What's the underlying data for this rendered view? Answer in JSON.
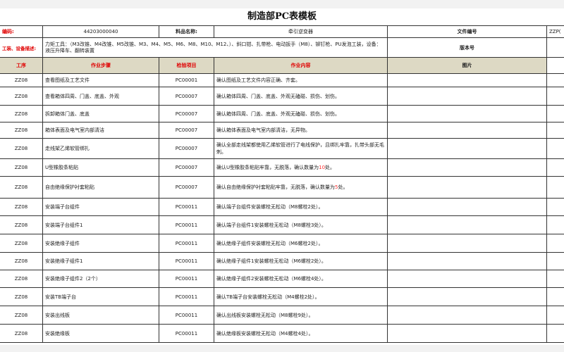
{
  "title": "制造部PC表模板",
  "info": {
    "code_label": "编码:",
    "code_value": "44203000040",
    "material_label": "料品名称:",
    "material_value": "牵引逆变器",
    "doc_no_label": "文件编号",
    "doc_no_value": "ZZP(",
    "tools_label": "工装、设备描述:",
    "tools_value": "力矩工具：（M3改锥、M4改锥、M5改锥、M3、M4、M5、M6、M8、M10、M12、）、斜口钳、扎带枪、电动扳手（M8）、铆钉枪、PU发泡工装，设备：液压升降车、翻转装置",
    "version_label": "版本号"
  },
  "headers": {
    "process": "工序",
    "step": "作业步骤",
    "check": "检验项目",
    "content": "作业内容",
    "image": "图片"
  },
  "rows": [
    {
      "process": "ZZ08",
      "step": "查看图纸及工艺文件",
      "check": "PC00001",
      "content": "确认图纸及工艺文件内容正确、齐套。"
    },
    {
      "process": "ZZ08",
      "step": "查看箱体四周、门盖、底盖、外观",
      "check": "PC00007",
      "content": "确认箱体四周、门盖、底盖、外观无磕碰、损伤、划伤。"
    },
    {
      "process": "ZZ08",
      "step": "拆卸箱体门盖、底盖",
      "check": "PC00007",
      "content": "确认箱体四周、门盖、底盖、外观无磕碰、损伤、划伤。"
    },
    {
      "process": "ZZ08",
      "step": "箱体表面及电气室内部清洁",
      "check": "PC00007",
      "content": "确认箱体表面及电气室内部清洁，无异物。"
    },
    {
      "process": "ZZ08",
      "step": "走线架乙烯软管绑扎",
      "check": "PC00007",
      "content": "确认全部走线架都使用乙烯软管进行了电线保护，且绑扎牢靠，扎带头部无毛刺。"
    },
    {
      "process": "ZZ08",
      "step": "U型橡胶条粘贴",
      "check": "PC00007",
      "content": "确认U型橡胶条粘贴牢靠，无脱落，确认数量为",
      "highlight": "10",
      "suffix": "处。"
    },
    {
      "process": "ZZ08",
      "step": "自由绝缘保护衬套粘贴",
      "check": "PC00007",
      "content": "确认自由绝缘保护衬套粘贴牢靠，无脱落，确认数量为",
      "highlight": "5",
      "suffix": "处。"
    },
    {
      "process": "ZZ08",
      "step": "安装端子台组件",
      "check": "PC00011",
      "content": "确认端子台组件安装螺栓无松动（M8螺栓2处）。"
    },
    {
      "process": "ZZ08",
      "step": "安装端子台组件1",
      "check": "PC00011",
      "content": "确认端子台组件1安装螺栓无松动（M8螺栓3处）。"
    },
    {
      "process": "ZZ08",
      "step": "安装绝缘子组件",
      "check": "PC00011",
      "content": "确认绝缘子组件安装螺栓无松动（M6螺栓2处）。"
    },
    {
      "process": "ZZ08",
      "step": "安装绝缘子组件1",
      "check": "PC00011",
      "content": "确认绝缘子组件1安装螺栓无松动（M6螺栓2处）。"
    },
    {
      "process": "ZZ08",
      "step": "安装绝缘子组件2（2个）",
      "check": "PC00011",
      "content": "确认绝缘子组件2安装螺栓无松动（M6螺栓4处）。"
    },
    {
      "process": "ZZ08",
      "step": "安装TB端子台",
      "check": "PC00011",
      "content": "确认TB端子台安装螺栓无松动（M4螺栓2处）。"
    },
    {
      "process": "ZZ08",
      "step": "安装出线板",
      "check": "PC00011",
      "content": "确认出线板安装螺栓无松动（M8螺栓9处）。"
    },
    {
      "process": "ZZ08",
      "step": "安装绝缘板",
      "check": "PC00011",
      "content": "确认绝缘板安装螺栓无松动（M4螺栓4处）。"
    }
  ]
}
